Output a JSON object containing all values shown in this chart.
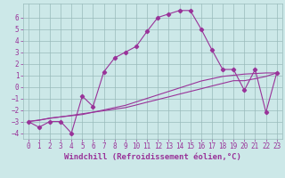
{
  "xlabel": "Windchill (Refroidissement éolien,°C)",
  "background_color": "#cce8e8",
  "grid_color": "#99bbbb",
  "line_color": "#993399",
  "xlim": [
    -0.5,
    23.5
  ],
  "ylim": [
    -4.5,
    7.2
  ],
  "xticks": [
    0,
    1,
    2,
    3,
    4,
    5,
    6,
    7,
    8,
    9,
    10,
    11,
    12,
    13,
    14,
    15,
    16,
    17,
    18,
    19,
    20,
    21,
    22,
    23
  ],
  "yticks": [
    -4,
    -3,
    -2,
    -1,
    0,
    1,
    2,
    3,
    4,
    5,
    6
  ],
  "main_x": [
    0,
    1,
    2,
    3,
    4,
    5,
    6,
    7,
    8,
    9,
    10,
    11,
    12,
    13,
    14,
    15,
    16,
    17,
    18,
    19,
    20,
    21,
    22,
    23
  ],
  "main_y": [
    -3.0,
    -3.5,
    -3.0,
    -3.0,
    -4.0,
    -0.8,
    -1.7,
    1.3,
    2.5,
    3.0,
    3.5,
    4.8,
    6.0,
    6.3,
    6.6,
    6.6,
    5.0,
    3.2,
    1.5,
    1.5,
    -0.3,
    1.5,
    -2.2,
    1.2
  ],
  "line2_x": [
    0,
    1,
    2,
    3,
    4,
    5,
    6,
    7,
    8,
    9,
    10,
    11,
    12,
    13,
    14,
    15,
    16,
    17,
    18,
    19,
    20,
    21,
    22,
    23
  ],
  "line2_y": [
    -3.0,
    -2.9,
    -2.7,
    -2.6,
    -2.5,
    -2.4,
    -2.2,
    -2.0,
    -1.8,
    -1.6,
    -1.3,
    -1.0,
    -0.7,
    -0.4,
    -0.1,
    0.2,
    0.5,
    0.7,
    0.9,
    1.0,
    1.1,
    1.15,
    1.2,
    1.2
  ],
  "line3_x": [
    0,
    1,
    2,
    3,
    4,
    5,
    6,
    7,
    8,
    9,
    10,
    11,
    12,
    13,
    14,
    15,
    16,
    17,
    18,
    19,
    20,
    21,
    22,
    23
  ],
  "line3_y": [
    -3.0,
    -2.87,
    -2.73,
    -2.6,
    -2.47,
    -2.33,
    -2.2,
    -2.07,
    -1.93,
    -1.8,
    -1.57,
    -1.33,
    -1.1,
    -0.87,
    -0.63,
    -0.4,
    -0.17,
    0.07,
    0.3,
    0.53,
    0.53,
    0.7,
    0.9,
    1.2
  ],
  "font_color": "#993399",
  "tick_fontsize": 5.5,
  "label_fontsize": 6.5
}
